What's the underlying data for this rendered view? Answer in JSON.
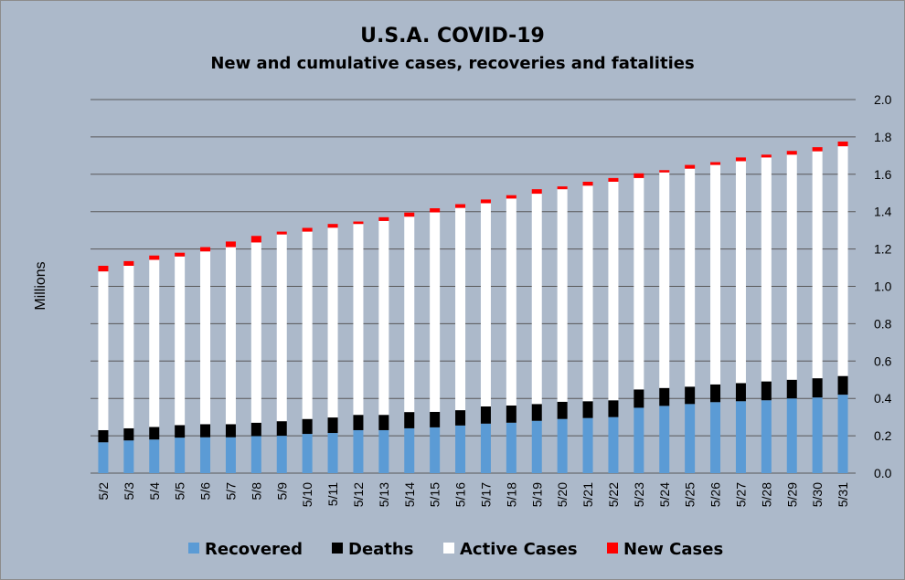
{
  "chart_data": {
    "type": "bar",
    "stacked": true,
    "title": "U.S.A. COVID-19",
    "subtitle": "New and cumulative cases, recoveries and fatalities",
    "xlabel": "",
    "ylabel": "Millions",
    "ylim": [
      0,
      2.0
    ],
    "yticks": [
      "0.0",
      "0.2",
      "0.4",
      "0.6",
      "0.8",
      "1.0",
      "1.2",
      "1.4",
      "1.6",
      "1.8",
      "2.0"
    ],
    "y_axis_side": "right",
    "grid": true,
    "legend_position": "bottom",
    "colors": {
      "Recovered": "#5b9bd5",
      "Deaths": "#000000",
      "Active Cases": "#ffffff",
      "New Cases": "#ff0000",
      "background": "#acb9ca",
      "gridline": "#595959"
    },
    "categories": [
      "5/2",
      "5/3",
      "5/4",
      "5/5",
      "5/6",
      "5/7",
      "5/8",
      "5/9",
      "5/10",
      "5/11",
      "5/12",
      "5/13",
      "5/14",
      "5/15",
      "5/16",
      "5/17",
      "5/18",
      "5/19",
      "5/20",
      "5/21",
      "5/22",
      "5/23",
      "5/24",
      "5/25",
      "5/26",
      "5/27",
      "5/28",
      "5/29",
      "5/30",
      "5/31"
    ],
    "series": [
      {
        "name": "Recovered",
        "values": [
          0.165,
          0.175,
          0.18,
          0.19,
          0.192,
          0.192,
          0.198,
          0.2,
          0.21,
          0.215,
          0.23,
          0.23,
          0.24,
          0.245,
          0.255,
          0.265,
          0.27,
          0.28,
          0.29,
          0.295,
          0.3,
          0.35,
          0.36,
          0.37,
          0.38,
          0.385,
          0.39,
          0.4,
          0.405,
          0.42
        ]
      },
      {
        "name": "Deaths",
        "values": [
          0.065,
          0.065,
          0.067,
          0.067,
          0.07,
          0.07,
          0.072,
          0.078,
          0.08,
          0.083,
          0.082,
          0.082,
          0.087,
          0.083,
          0.082,
          0.092,
          0.092,
          0.09,
          0.092,
          0.09,
          0.09,
          0.098,
          0.096,
          0.093,
          0.095,
          0.097,
          0.101,
          0.1,
          0.103,
          0.1
        ]
      },
      {
        "name": "Active Cases",
        "values": [
          0.85,
          0.87,
          0.895,
          0.903,
          0.925,
          0.948,
          0.965,
          1.0,
          1.003,
          1.016,
          1.022,
          1.038,
          1.046,
          1.068,
          1.083,
          1.088,
          1.108,
          1.126,
          1.138,
          1.154,
          1.17,
          1.132,
          1.154,
          1.167,
          1.175,
          1.188,
          1.199,
          1.205,
          1.215,
          1.23
        ]
      },
      {
        "name": "New Cases",
        "values": [
          0.03,
          0.025,
          0.023,
          0.02,
          0.023,
          0.03,
          0.035,
          0.015,
          0.02,
          0.02,
          0.013,
          0.02,
          0.022,
          0.022,
          0.02,
          0.02,
          0.018,
          0.024,
          0.015,
          0.021,
          0.02,
          0.025,
          0.012,
          0.02,
          0.015,
          0.02,
          0.015,
          0.02,
          0.022,
          0.025
        ]
      }
    ]
  }
}
